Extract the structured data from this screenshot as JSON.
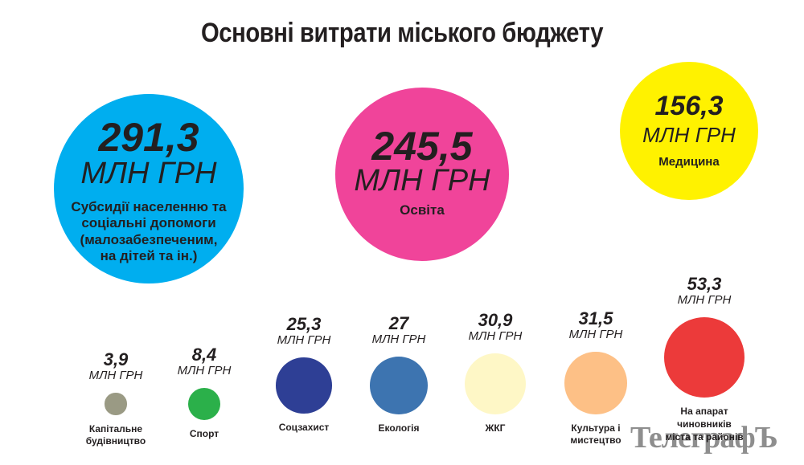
{
  "chart_data": {
    "type": "bubble",
    "title": "Основні витрати міського бюджету",
    "unit": "млн грн",
    "items": [
      {
        "value": 291.3,
        "value_text": "291,3",
        "unit": "МЛН ГРН",
        "label": "Субсидії населенню та\nсоціальні допомоги\n(малозабезпеченим,\nна дітей та ін.)",
        "color": "#00aeef"
      },
      {
        "value": 245.5,
        "value_text": "245,5",
        "unit": "МЛН ГРН",
        "label": "Освіта",
        "color": "#f0449a"
      },
      {
        "value": 156.3,
        "value_text": "156,3",
        "unit": "МЛН ГРН",
        "label": "Медицина",
        "color": "#fff200"
      },
      {
        "value": 3.9,
        "value_text": "3,9",
        "unit": "МЛН ГРН",
        "label": "Капітальне\nбудівництво",
        "color": "#9a9a84"
      },
      {
        "value": 8.4,
        "value_text": "8,4",
        "unit": "МЛН ГРН",
        "label": "Спорт",
        "color": "#2bb04a"
      },
      {
        "value": 25.3,
        "value_text": "25,3",
        "unit": "МЛН ГРН",
        "label": "Соцзахист",
        "color": "#2e3f95"
      },
      {
        "value": 27,
        "value_text": "27",
        "unit": "МЛН ГРН",
        "label": "Екологія",
        "color": "#3d74b0"
      },
      {
        "value": 30.9,
        "value_text": "30,9",
        "unit": "МЛН ГРН",
        "label": "ЖКГ",
        "color": "#fef7c6"
      },
      {
        "value": 31.5,
        "value_text": "31,5",
        "unit": "МЛН ГРН",
        "label": "Культура і\nмистецтво",
        "color": "#fdc086"
      },
      {
        "value": 53.3,
        "value_text": "53,3",
        "unit": "МЛН ГРН",
        "label": "На апарат\nчиновників\nміста та районів",
        "color": "#ec3a3a"
      }
    ]
  },
  "watermark": "ТелеграфЪ"
}
